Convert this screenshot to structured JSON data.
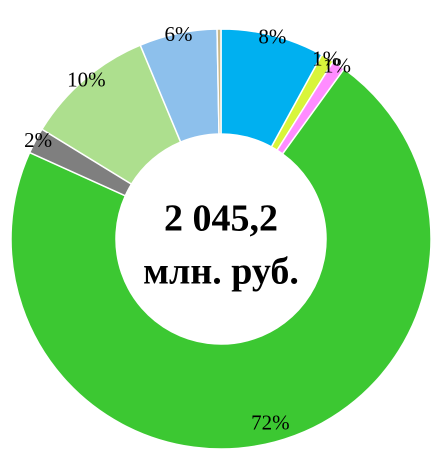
{
  "chart_data": {
    "type": "donut",
    "values": [
      8,
      1,
      1,
      72,
      2,
      10,
      6,
      0.3
    ],
    "value_labels": [
      "8%",
      "1%",
      "1%",
      "72%",
      "2%",
      "10%",
      "6%",
      null
    ],
    "colors": [
      "#00b0f0",
      "#d9f53a",
      "#ff8cff",
      "#3cc832",
      "#7f7f7f",
      "#addf8e",
      "#8dc0ec",
      "#c8b88a"
    ],
    "center_label": [
      "2 045,2",
      "млн. руб."
    ]
  }
}
